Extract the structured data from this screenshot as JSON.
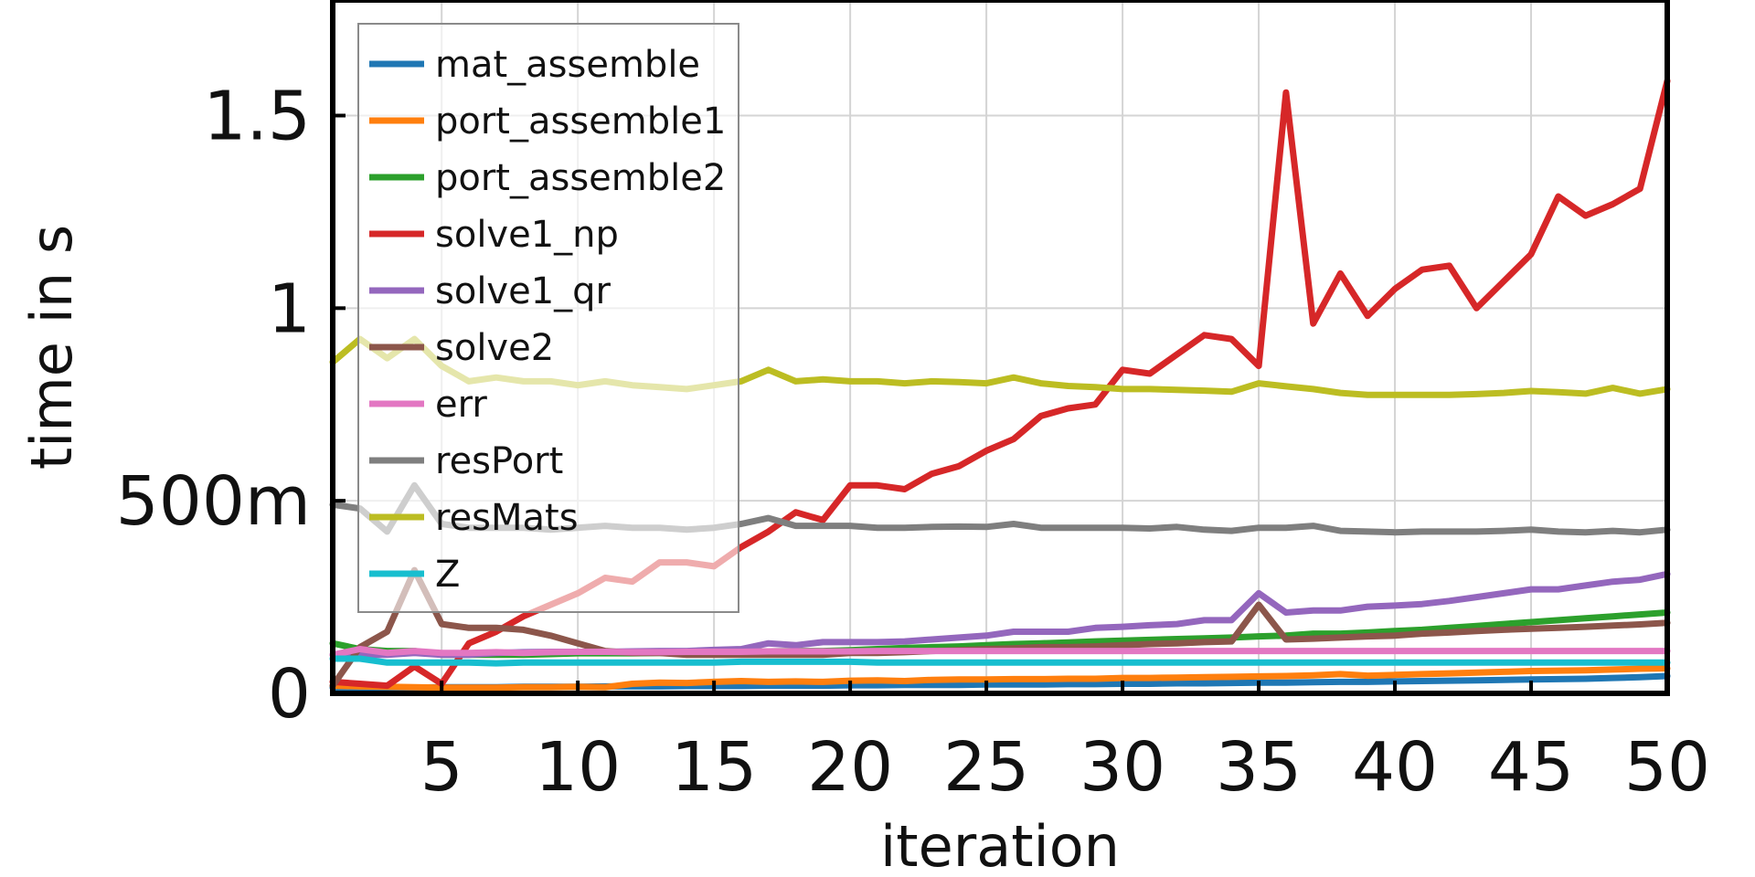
{
  "chart_data": {
    "type": "line",
    "xlabel": "iteration",
    "ylabel": "time in s",
    "xlim": [
      1,
      50
    ],
    "ylim": [
      0,
      1.8
    ],
    "grid": true,
    "legend_position": "top-left",
    "x_ticks": [
      {
        "value": 5,
        "label": "5"
      },
      {
        "value": 10,
        "label": "10"
      },
      {
        "value": 15,
        "label": "15"
      },
      {
        "value": 20,
        "label": "20"
      },
      {
        "value": 25,
        "label": "25"
      },
      {
        "value": 30,
        "label": "30"
      },
      {
        "value": 35,
        "label": "35"
      },
      {
        "value": 40,
        "label": "40"
      },
      {
        "value": 45,
        "label": "45"
      },
      {
        "value": 50,
        "label": "50"
      }
    ],
    "y_ticks": [
      {
        "value": 0,
        "label": "0"
      },
      {
        "value": 0.5,
        "label": "500m"
      },
      {
        "value": 1,
        "label": "1"
      },
      {
        "value": 1.5,
        "label": "1.5"
      }
    ],
    "x": [
      1,
      2,
      3,
      4,
      5,
      6,
      7,
      8,
      9,
      10,
      11,
      12,
      13,
      14,
      15,
      16,
      17,
      18,
      19,
      20,
      21,
      22,
      23,
      24,
      25,
      26,
      27,
      28,
      29,
      30,
      31,
      32,
      33,
      34,
      35,
      36,
      37,
      38,
      39,
      40,
      41,
      42,
      43,
      44,
      45,
      46,
      47,
      48,
      49,
      50
    ],
    "series": [
      {
        "name": "mat_assemble",
        "color": "#1f77b4",
        "values": [
          0.015,
          0.015,
          0.015,
          0.015,
          0.016,
          0.016,
          0.016,
          0.017,
          0.017,
          0.017,
          0.018,
          0.018,
          0.018,
          0.019,
          0.019,
          0.019,
          0.02,
          0.02,
          0.02,
          0.021,
          0.021,
          0.022,
          0.022,
          0.022,
          0.023,
          0.023,
          0.023,
          0.024,
          0.024,
          0.025,
          0.025,
          0.026,
          0.026,
          0.027,
          0.028,
          0.028,
          0.029,
          0.03,
          0.03,
          0.031,
          0.032,
          0.033,
          0.034,
          0.035,
          0.036,
          0.037,
          0.038,
          0.04,
          0.042,
          0.045
        ]
      },
      {
        "name": "port_assemble1",
        "color": "#ff7f0e",
        "values": [
          0.02,
          0.018,
          0.017,
          0.016,
          0.015,
          0.015,
          0.015,
          0.016,
          0.016,
          0.017,
          0.016,
          0.025,
          0.028,
          0.027,
          0.03,
          0.032,
          0.03,
          0.031,
          0.03,
          0.033,
          0.034,
          0.032,
          0.035,
          0.036,
          0.036,
          0.037,
          0.037,
          0.038,
          0.038,
          0.04,
          0.04,
          0.041,
          0.042,
          0.043,
          0.044,
          0.045,
          0.047,
          0.05,
          0.046,
          0.048,
          0.05,
          0.052,
          0.054,
          0.056,
          0.058,
          0.059,
          0.06,
          0.062,
          0.064,
          0.065
        ]
      },
      {
        "name": "port_assemble2",
        "color": "#2ca02c",
        "values": [
          0.13,
          0.115,
          0.11,
          0.11,
          0.1,
          0.1,
          0.1,
          0.1,
          0.102,
          0.104,
          0.104,
          0.104,
          0.105,
          0.106,
          0.107,
          0.108,
          0.109,
          0.11,
          0.11,
          0.112,
          0.115,
          0.118,
          0.12,
          0.122,
          0.125,
          0.128,
          0.13,
          0.132,
          0.135,
          0.137,
          0.139,
          0.141,
          0.143,
          0.145,
          0.148,
          0.15,
          0.155,
          0.155,
          0.158,
          0.162,
          0.165,
          0.17,
          0.175,
          0.18,
          0.185,
          0.19,
          0.195,
          0.2,
          0.205,
          0.21
        ]
      },
      {
        "name": "solve1_np",
        "color": "#d62728",
        "values": [
          0.03,
          0.025,
          0.02,
          0.07,
          0.025,
          0.13,
          0.16,
          0.2,
          0.23,
          0.26,
          0.3,
          0.29,
          0.34,
          0.34,
          0.33,
          0.38,
          0.42,
          0.47,
          0.45,
          0.54,
          0.54,
          0.53,
          0.57,
          0.59,
          0.63,
          0.66,
          0.72,
          0.74,
          0.75,
          0.84,
          0.83,
          0.88,
          0.93,
          0.92,
          0.85,
          1.56,
          0.96,
          1.09,
          0.98,
          1.05,
          1.1,
          1.11,
          1.0,
          1.07,
          1.14,
          1.29,
          1.24,
          1.27,
          1.31,
          1.59
        ]
      },
      {
        "name": "solve1_qr",
        "color": "#9467bd",
        "values": [
          0.1,
          0.1,
          0.1,
          0.105,
          0.1,
          0.1,
          0.105,
          0.107,
          0.108,
          0.108,
          0.108,
          0.109,
          0.11,
          0.11,
          0.113,
          0.115,
          0.13,
          0.125,
          0.133,
          0.133,
          0.133,
          0.135,
          0.14,
          0.145,
          0.15,
          0.16,
          0.16,
          0.16,
          0.17,
          0.173,
          0.177,
          0.18,
          0.19,
          0.19,
          0.26,
          0.21,
          0.215,
          0.215,
          0.225,
          0.228,
          0.232,
          0.24,
          0.25,
          0.26,
          0.27,
          0.27,
          0.28,
          0.29,
          0.295,
          0.31
        ]
      },
      {
        "name": "solve2",
        "color": "#8c564b",
        "values": [
          0.02,
          0.12,
          0.16,
          0.32,
          0.18,
          0.17,
          0.17,
          0.165,
          0.15,
          0.13,
          0.11,
          0.105,
          0.105,
          0.1,
          0.1,
          0.1,
          0.1,
          0.1,
          0.1,
          0.105,
          0.105,
          0.107,
          0.11,
          0.112,
          0.115,
          0.117,
          0.12,
          0.12,
          0.122,
          0.125,
          0.128,
          0.13,
          0.133,
          0.135,
          0.23,
          0.14,
          0.142,
          0.145,
          0.148,
          0.15,
          0.155,
          0.158,
          0.162,
          0.165,
          0.168,
          0.17,
          0.173,
          0.176,
          0.179,
          0.183
        ]
      },
      {
        "name": "err",
        "color": "#e377c2",
        "values": [
          0.1,
          0.115,
          0.105,
          0.11,
          0.105,
          0.105,
          0.107,
          0.105,
          0.107,
          0.108,
          0.108,
          0.107,
          0.107,
          0.108,
          0.108,
          0.108,
          0.109,
          0.109,
          0.109,
          0.109,
          0.11,
          0.11,
          0.11,
          0.11,
          0.11,
          0.11,
          0.11,
          0.11,
          0.11,
          0.11,
          0.11,
          0.11,
          0.11,
          0.11,
          0.11,
          0.11,
          0.11,
          0.11,
          0.11,
          0.11,
          0.11,
          0.11,
          0.11,
          0.11,
          0.11,
          0.11,
          0.11,
          0.11,
          0.11,
          0.11
        ]
      },
      {
        "name": "resPort",
        "color": "#7f7f7f",
        "values": [
          0.49,
          0.48,
          0.42,
          0.54,
          0.44,
          0.43,
          0.43,
          0.43,
          0.425,
          0.43,
          0.435,
          0.43,
          0.43,
          0.425,
          0.43,
          0.44,
          0.455,
          0.435,
          0.435,
          0.435,
          0.43,
          0.43,
          0.432,
          0.433,
          0.432,
          0.44,
          0.43,
          0.43,
          0.43,
          0.43,
          0.428,
          0.432,
          0.425,
          0.422,
          0.43,
          0.43,
          0.435,
          0.422,
          0.42,
          0.418,
          0.42,
          0.42,
          0.42,
          0.422,
          0.425,
          0.42,
          0.418,
          0.422,
          0.418,
          0.425
        ]
      },
      {
        "name": "resMats",
        "color": "#bcbd22",
        "values": [
          0.86,
          0.92,
          0.87,
          0.92,
          0.85,
          0.81,
          0.82,
          0.81,
          0.81,
          0.8,
          0.81,
          0.8,
          0.795,
          0.79,
          0.8,
          0.81,
          0.84,
          0.81,
          0.815,
          0.81,
          0.81,
          0.805,
          0.81,
          0.808,
          0.805,
          0.82,
          0.805,
          0.798,
          0.795,
          0.79,
          0.79,
          0.788,
          0.786,
          0.783,
          0.805,
          0.797,
          0.79,
          0.78,
          0.775,
          0.775,
          0.775,
          0.775,
          0.777,
          0.78,
          0.785,
          0.782,
          0.778,
          0.793,
          0.778,
          0.79
        ]
      },
      {
        "name": "Z",
        "color": "#17becf",
        "values": [
          0.09,
          0.09,
          0.08,
          0.08,
          0.08,
          0.08,
          0.078,
          0.08,
          0.08,
          0.08,
          0.08,
          0.08,
          0.08,
          0.08,
          0.08,
          0.082,
          0.082,
          0.082,
          0.082,
          0.082,
          0.08,
          0.08,
          0.08,
          0.08,
          0.08,
          0.08,
          0.08,
          0.08,
          0.08,
          0.08,
          0.08,
          0.08,
          0.08,
          0.08,
          0.08,
          0.08,
          0.08,
          0.08,
          0.08,
          0.08,
          0.08,
          0.08,
          0.08,
          0.08,
          0.08,
          0.08,
          0.08,
          0.08,
          0.08,
          0.08
        ]
      }
    ]
  }
}
